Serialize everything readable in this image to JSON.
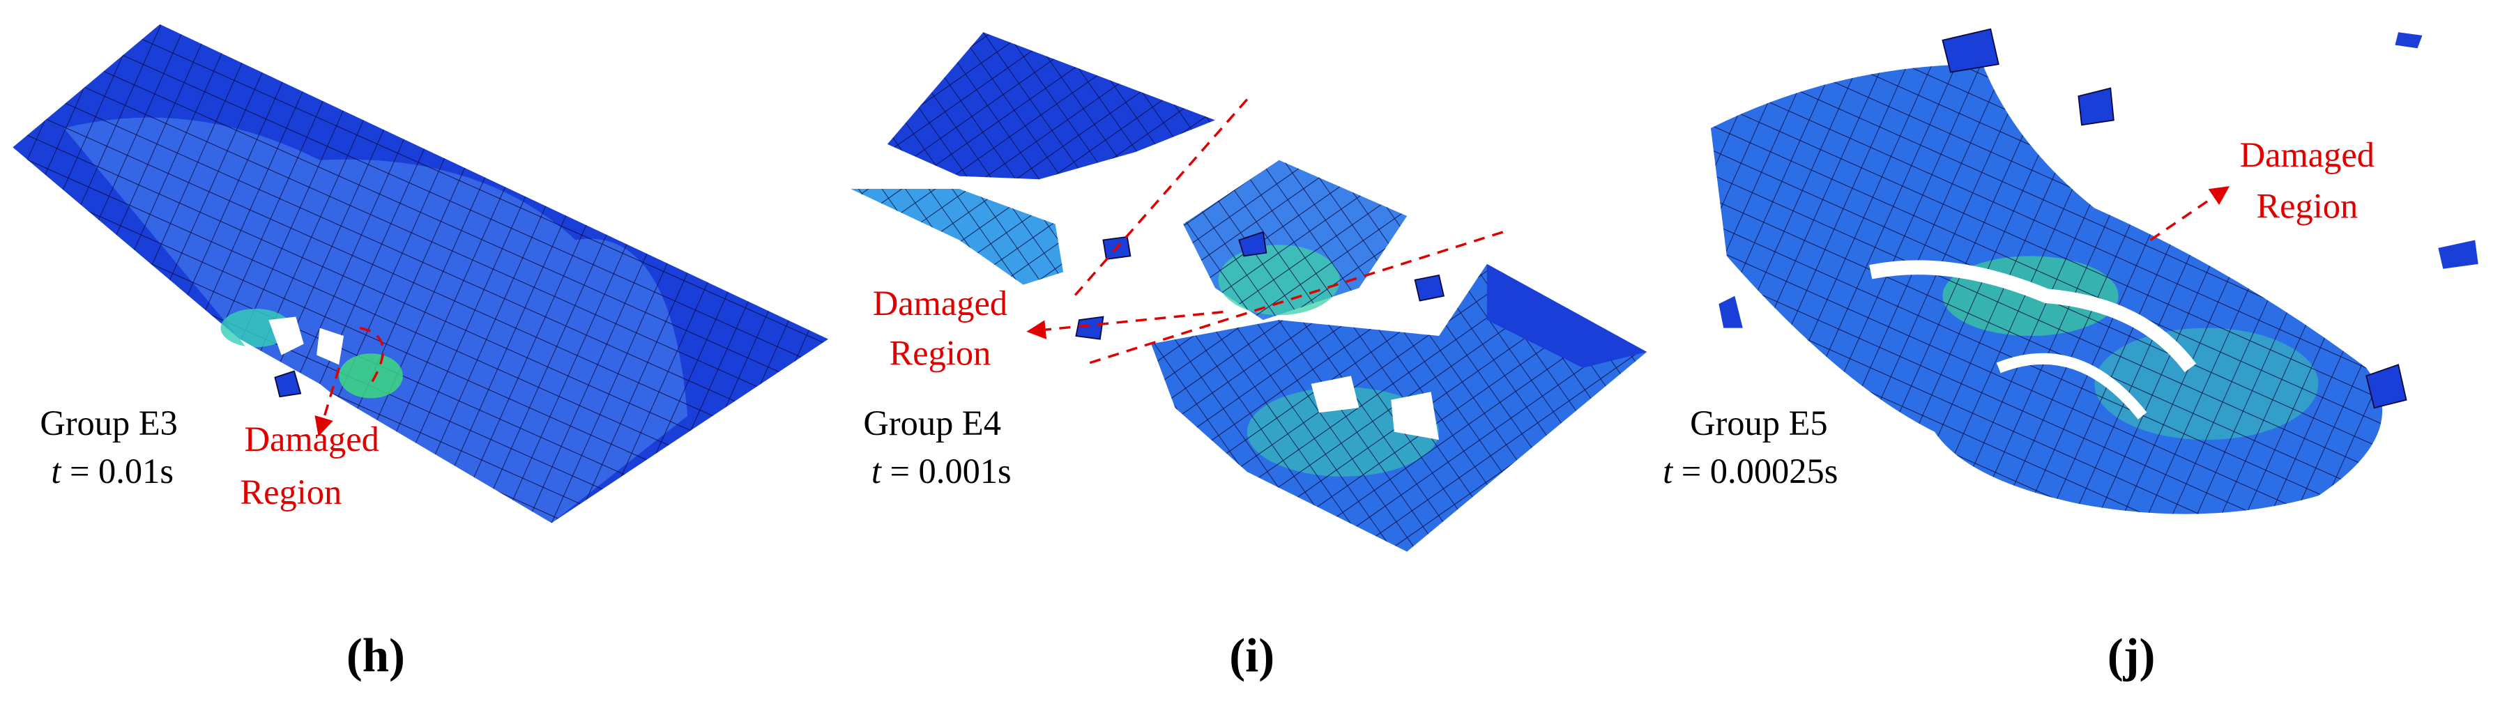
{
  "panels": [
    {
      "group": "Group E3",
      "time_symbol": "t",
      "time_value": "= 0.01s",
      "damage": [
        "Damaged",
        "Region"
      ],
      "label": "(h)"
    },
    {
      "group": "Group E4",
      "time_symbol": "t",
      "time_value": "= 0.001s",
      "damage": [
        "Damaged",
        "Region"
      ],
      "label": "(i)"
    },
    {
      "group": "Group E5",
      "time_symbol": "t",
      "time_value": "= 0.00025s",
      "damage": [
        "Damaged",
        "Region"
      ],
      "label": "(j)"
    }
  ]
}
